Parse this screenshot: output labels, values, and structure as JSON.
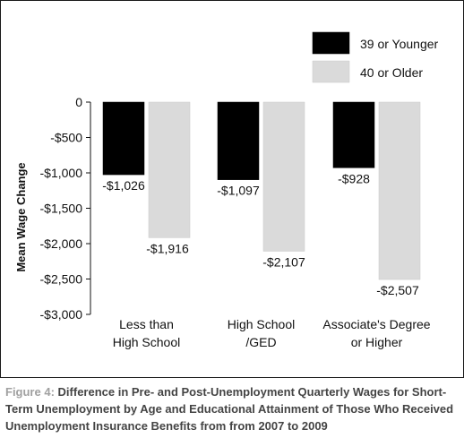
{
  "chart_data": {
    "type": "bar",
    "categories": [
      [
        "Less than",
        "High School"
      ],
      [
        "High School",
        "/GED"
      ],
      [
        "Associate's Degree",
        "or Higher"
      ]
    ],
    "series": [
      {
        "name": "39 or Younger",
        "values": [
          -1026,
          -1097,
          -928
        ],
        "labels": [
          "-$1,026",
          "-$1,097",
          "-$928"
        ],
        "color": "#000000"
      },
      {
        "name": "40 or Older",
        "values": [
          -1916,
          -2107,
          -2507
        ],
        "labels": [
          "-$1,916",
          "-$2,107",
          "-$2,507"
        ],
        "color": "#dadada"
      }
    ],
    "ylabel": "Mean Wage Change",
    "ylim": [
      -3000,
      0
    ],
    "yticks": [
      0,
      -500,
      -1000,
      -1500,
      -2000,
      -2500,
      -3000
    ],
    "ytick_labels": [
      "0",
      "-$500",
      "-$1,000",
      "-$1,500",
      "-$2,000",
      "-$2,500",
      "-$3,000"
    ],
    "legend_position": "top-right",
    "grid": false
  },
  "caption": {
    "label": "Figure 4:",
    "text": "Difference in Pre- and Post-Unemployment Quarterly Wages for Short-Term Unemployment by Age and Educational Attainment of Those Who Received Unemployment Insurance Benefits from from 2007 to 2009"
  }
}
